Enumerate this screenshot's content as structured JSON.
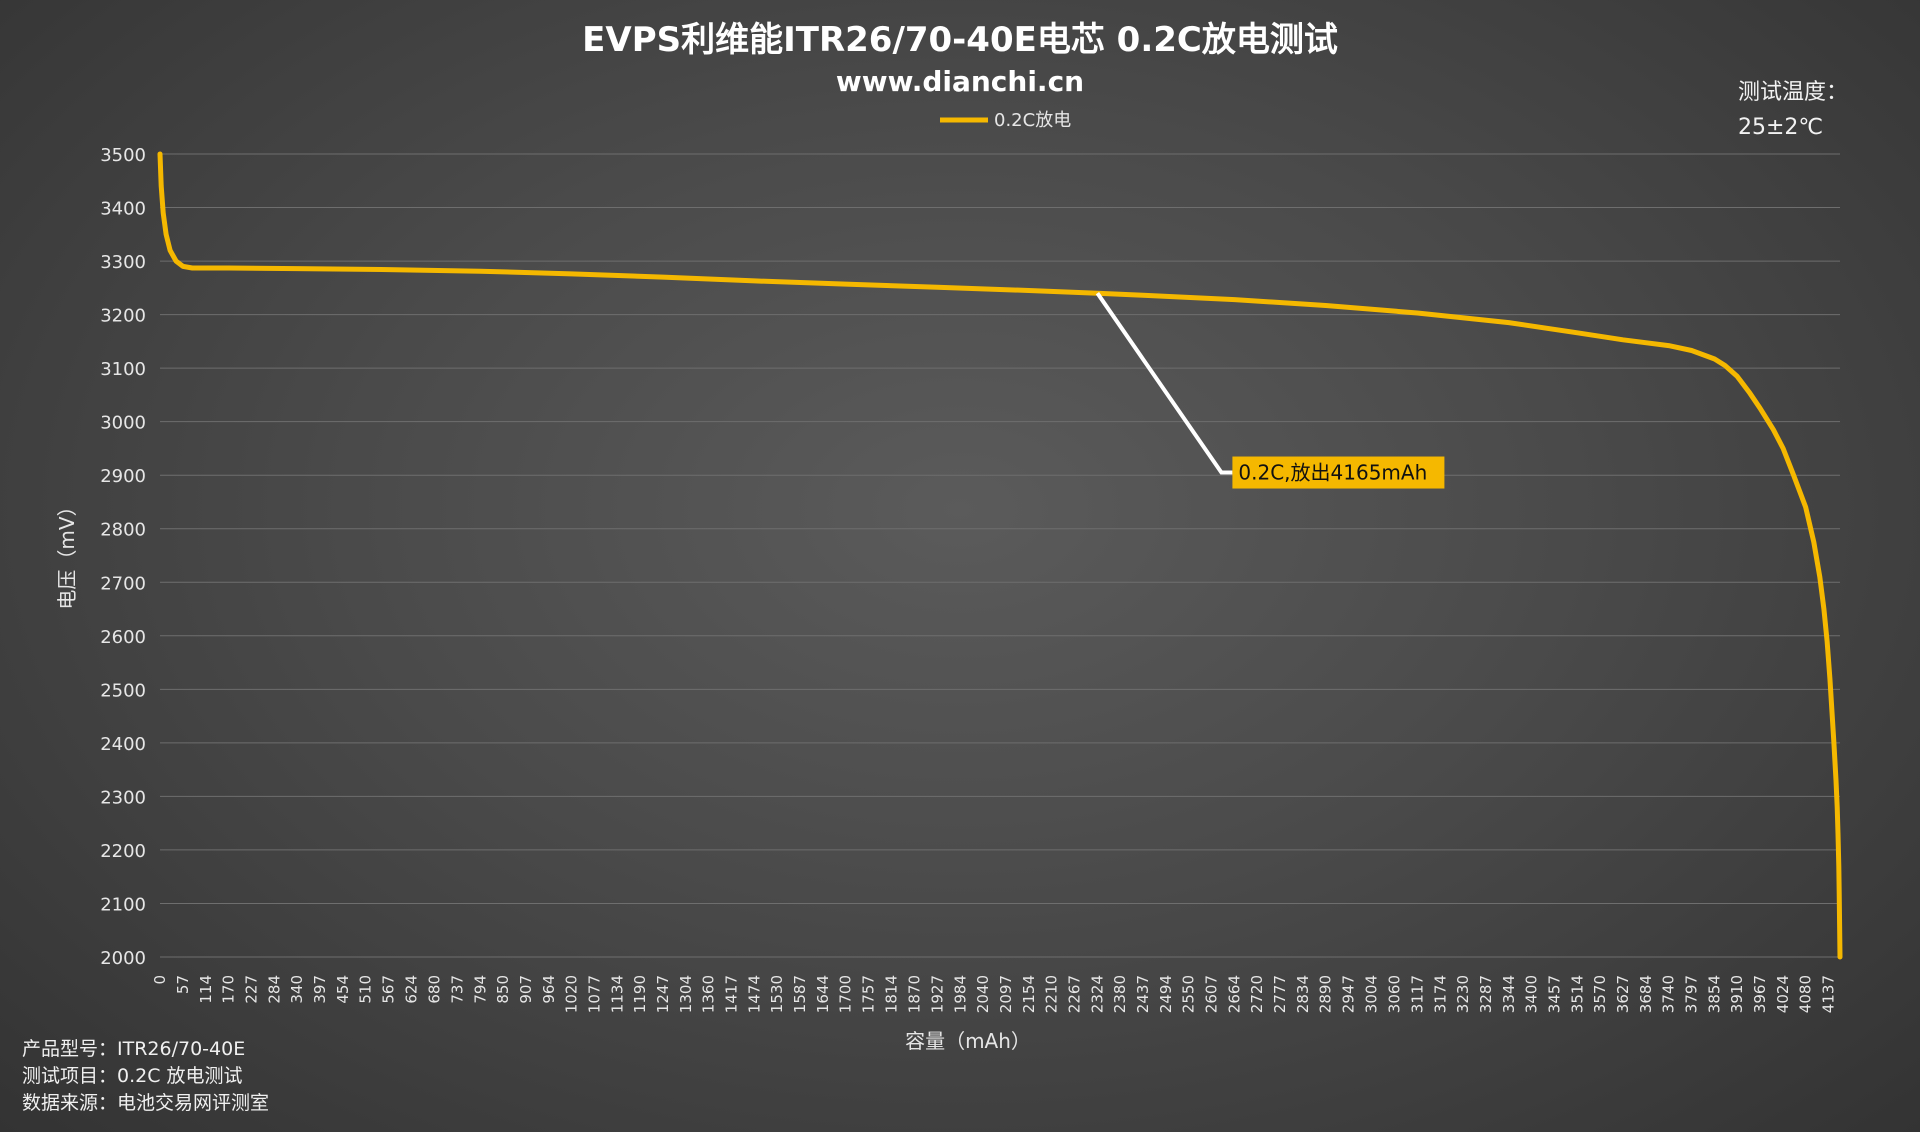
{
  "title": "EVPS利维能ITR26/70-40E电芯 0.2C放电测试",
  "subtitle": "www.dianchi.cn",
  "temperature": {
    "label": "测试温度：",
    "value": "25±2℃"
  },
  "info": {
    "line1": "产品型号：ITR26/70-40E",
    "line2": "测试项目：0.2C 放电测试",
    "line3": "数据来源：电池交易网评测室"
  },
  "colors": {
    "series": "#f5b800",
    "callout_bg": "#f5b800",
    "grid": "#6e6e6e"
  },
  "chart_data": {
    "type": "line",
    "xlabel": "容量（mAh）",
    "ylabel": "电压（mV）",
    "ylim": [
      2000,
      3500
    ],
    "yticks": [
      2000,
      2100,
      2200,
      2300,
      2400,
      2500,
      2600,
      2700,
      2800,
      2900,
      3000,
      3100,
      3200,
      3300,
      3400,
      3500
    ],
    "xticks": [
      0,
      57,
      114,
      170,
      227,
      284,
      340,
      397,
      454,
      510,
      567,
      624,
      680,
      737,
      794,
      850,
      907,
      964,
      1020,
      1077,
      1134,
      1190,
      1247,
      1304,
      1360,
      1417,
      1474,
      1530,
      1587,
      1644,
      1700,
      1757,
      1814,
      1870,
      1927,
      1984,
      2040,
      2097,
      2154,
      2210,
      2267,
      2324,
      2380,
      2437,
      2494,
      2550,
      2607,
      2664,
      2720,
      2777,
      2834,
      2890,
      2947,
      3004,
      3060,
      3117,
      3174,
      3230,
      3287,
      3344,
      3400,
      3457,
      3514,
      3570,
      3627,
      3684,
      3740,
      3797,
      3854,
      3910,
      3967,
      4024,
      4080,
      4137
    ],
    "xlim": [
      0,
      4165
    ],
    "grid": true,
    "legend": "top-center",
    "series": [
      {
        "name": "0.2C放电",
        "x": [
          0,
          3,
          8,
          15,
          25,
          40,
          57,
          80,
          114,
          170,
          340,
          567,
          794,
          1020,
          1247,
          1474,
          1700,
          1927,
          2154,
          2324,
          2437,
          2664,
          2890,
          3117,
          3344,
          3514,
          3627,
          3740,
          3797,
          3854,
          3880,
          3910,
          3940,
          3967,
          4000,
          4024,
          4050,
          4080,
          4100,
          4115,
          4125,
          4133,
          4140,
          4145,
          4150,
          4155,
          4158,
          4160,
          4162,
          4163,
          4164,
          4165
        ],
        "y": [
          3500,
          3440,
          3390,
          3350,
          3320,
          3300,
          3290,
          3287,
          3287,
          3287,
          3286,
          3284,
          3281,
          3276,
          3270,
          3263,
          3257,
          3251,
          3245,
          3240,
          3236,
          3228,
          3217,
          3203,
          3185,
          3166,
          3153,
          3142,
          3133,
          3117,
          3105,
          3085,
          3055,
          3025,
          2985,
          2950,
          2900,
          2840,
          2775,
          2710,
          2650,
          2590,
          2520,
          2460,
          2400,
          2330,
          2280,
          2230,
          2170,
          2120,
          2060,
          2000
        ]
      }
    ],
    "annotations": [
      {
        "text": "0.2C,放出4165mAh",
        "anchor_x": 2324,
        "anchor_y": 3240,
        "elbow_y": 2905
      }
    ]
  }
}
